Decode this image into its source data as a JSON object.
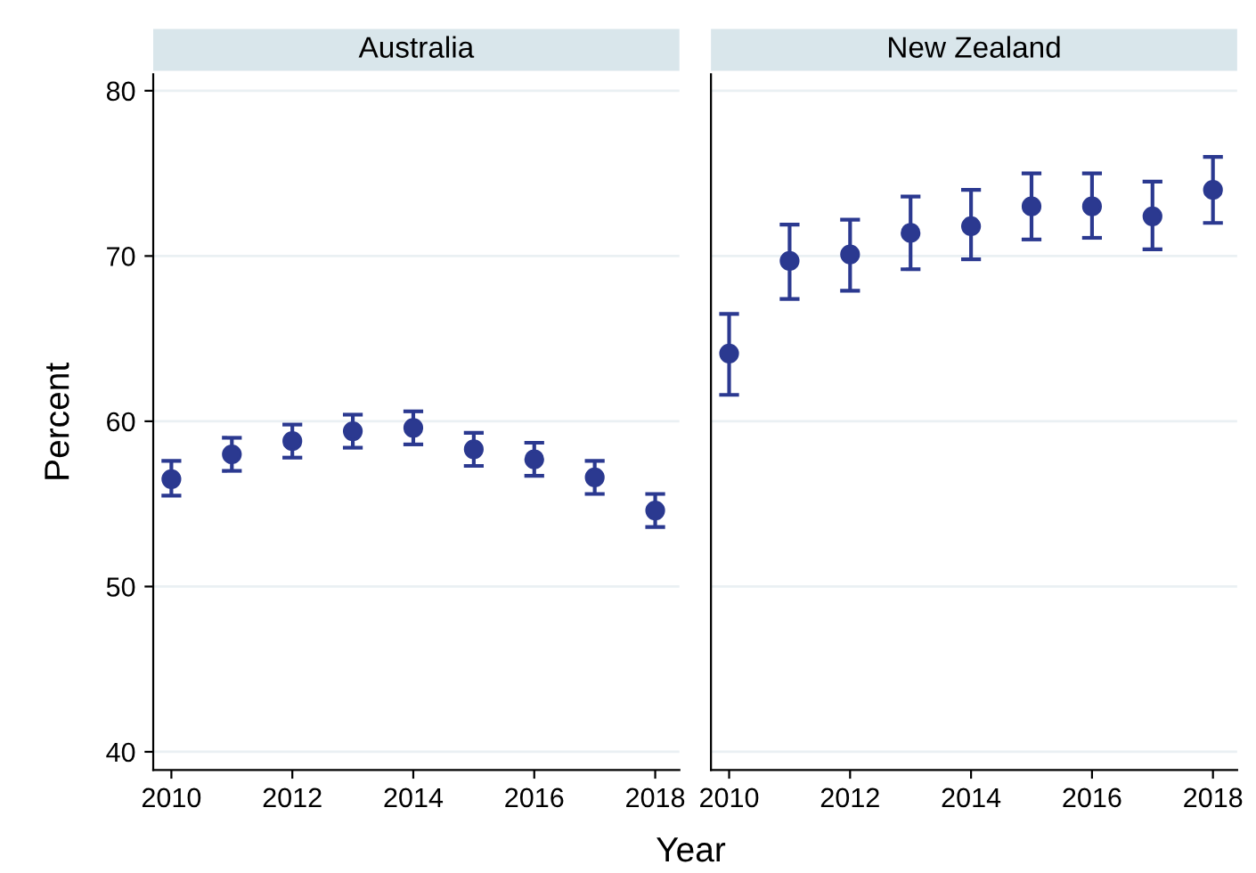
{
  "chart_data": [
    {
      "type": "scatter",
      "title": "Australia",
      "xlabel": "Year",
      "ylabel": "Percent",
      "x": [
        2010,
        2011,
        2012,
        2013,
        2014,
        2015,
        2016,
        2017,
        2018
      ],
      "series": [
        {
          "color": "#2b3990",
          "values": [
            56.5,
            58.0,
            58.8,
            59.4,
            59.6,
            58.3,
            57.7,
            56.6,
            54.6
          ],
          "errors": [
            [
              55.5,
              57.6
            ],
            [
              57.0,
              59.0
            ],
            [
              57.8,
              59.8
            ],
            [
              58.4,
              60.4
            ],
            [
              58.6,
              60.6
            ],
            [
              57.3,
              59.3
            ],
            [
              56.7,
              58.7
            ],
            [
              55.6,
              57.6
            ],
            [
              53.6,
              55.6
            ]
          ]
        }
      ],
      "xlim": [
        2009.7,
        2018.4
      ],
      "xticks": [
        2010,
        2012,
        2014,
        2016,
        2018
      ],
      "ylim": [
        38.9,
        81
      ],
      "yticks": [
        40,
        50,
        60,
        70,
        80
      ],
      "grid": "y",
      "marker": "circle",
      "legend": false
    },
    {
      "type": "scatter",
      "title": "New Zealand",
      "x": [
        2010,
        2011,
        2012,
        2013,
        2014,
        2015,
        2016,
        2017,
        2018
      ],
      "series": [
        {
          "color": "#2b3990",
          "values": [
            64.1,
            69.7,
            70.1,
            71.4,
            71.8,
            73.0,
            73.0,
            72.4,
            74.0
          ],
          "errors": [
            [
              61.6,
              66.5
            ],
            [
              67.4,
              71.9
            ],
            [
              67.9,
              72.2
            ],
            [
              69.2,
              73.6
            ],
            [
              69.8,
              74.0
            ],
            [
              71.0,
              75.0
            ],
            [
              71.1,
              75.0
            ],
            [
              70.4,
              74.5
            ],
            [
              72.0,
              76.0
            ]
          ]
        }
      ],
      "xlim": [
        2009.7,
        2018.4
      ],
      "xticks": [
        2010,
        2012,
        2014,
        2016,
        2018
      ],
      "ylim": [
        38.9,
        81
      ],
      "yticks": [
        40,
        50,
        60,
        70,
        80
      ],
      "grid": "y",
      "marker": "circle",
      "legend": false,
      "tick_labels": "x"
    }
  ]
}
